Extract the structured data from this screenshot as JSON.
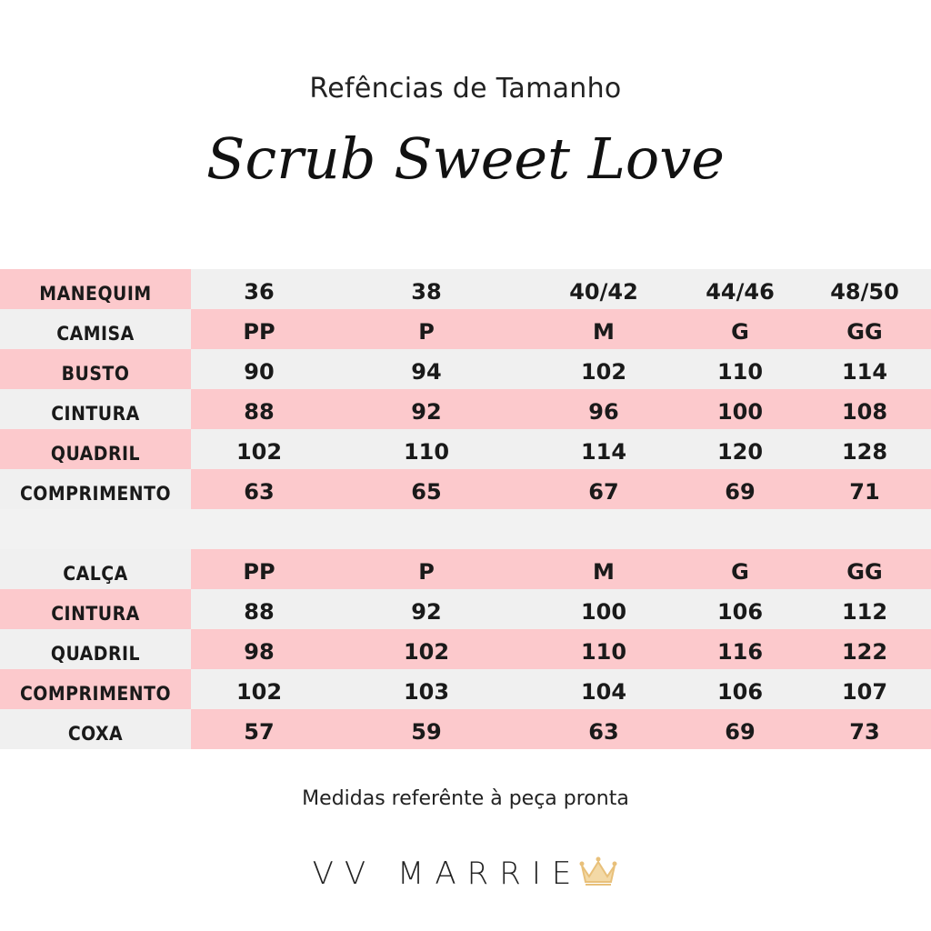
{
  "subtitle": "Refências de Tamanho",
  "title": "Scrub Sweet Love",
  "shirt_table": [
    {
      "label": "MANEQUIM",
      "values": [
        "36",
        "38",
        "40/42",
        "44/46",
        "48/50"
      ]
    },
    {
      "label": "CAMISA",
      "values": [
        "PP",
        "P",
        "M",
        "G",
        "GG"
      ]
    },
    {
      "label": "BUSTO",
      "values": [
        "90",
        "94",
        "102",
        "110",
        "114"
      ]
    },
    {
      "label": "CINTURA",
      "values": [
        "88",
        "92",
        "96",
        "100",
        "108"
      ]
    },
    {
      "label": "QUADRIL",
      "values": [
        "102",
        "110",
        "114",
        "120",
        "128"
      ]
    },
    {
      "label": "COMPRIMENTO",
      "values": [
        "63",
        "65",
        "67",
        "69",
        "71"
      ]
    }
  ],
  "pants_table": [
    {
      "label": "CALÇA",
      "values": [
        "PP",
        "P",
        "M",
        "G",
        "GG"
      ]
    },
    {
      "label": "CINTURA",
      "values": [
        "88",
        "92",
        "100",
        "106",
        "112"
      ]
    },
    {
      "label": "QUADRIL",
      "values": [
        "98",
        "102",
        "110",
        "116",
        "122"
      ]
    },
    {
      "label": "COMPRIMENTO",
      "values": [
        "102",
        "103",
        "104",
        "106",
        "107"
      ]
    },
    {
      "label": "COXA",
      "values": [
        "57",
        "59",
        "63",
        "69",
        "73"
      ]
    }
  ],
  "note": "Medidas referênte à peça pronta",
  "brand": "VV MARRIE",
  "colors": {
    "pink": "#fcc9cc",
    "grey": "#f0f0f0",
    "crown": "#e8c07a"
  },
  "icons": {
    "brand_crown": "crown-icon"
  }
}
